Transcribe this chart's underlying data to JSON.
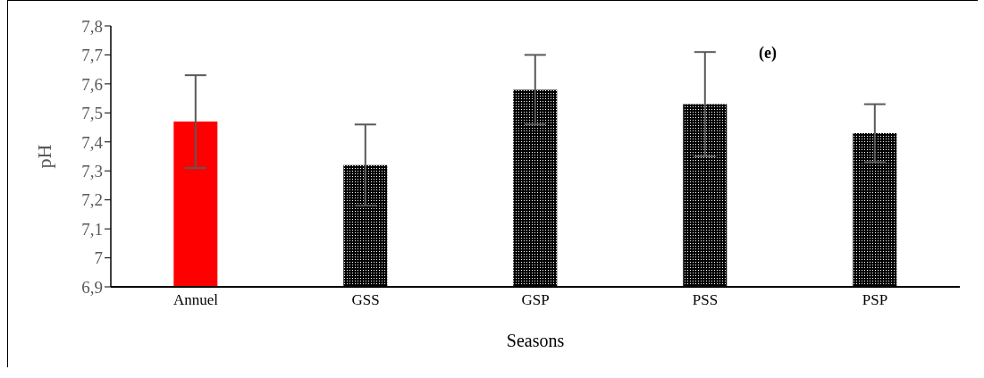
{
  "chart_data": {
    "type": "bar",
    "xlabel": "Seasons",
    "ylabel": "pH",
    "annotations": [
      "(e)"
    ],
    "categories": [
      "Annuel",
      "GSS",
      "GSP",
      "PSS",
      "PSP"
    ],
    "values": [
      7.47,
      7.32,
      7.58,
      7.53,
      7.43
    ],
    "errors": [
      0.16,
      0.14,
      0.12,
      0.18,
      0.1
    ],
    "colors": [
      "#ff0000",
      "#000000",
      "#000000",
      "#000000",
      "#000000"
    ],
    "ylim": [
      6.9,
      7.8
    ],
    "yticks": [
      {
        "value": 6.9,
        "label": "6,9"
      },
      {
        "value": 7,
        "label": "7"
      },
      {
        "value": 7.1,
        "label": "7,1"
      },
      {
        "value": 7.2,
        "label": "7,2"
      },
      {
        "value": 7.3,
        "label": "7,3"
      },
      {
        "value": 7.4,
        "label": "7,4"
      },
      {
        "value": 7.5,
        "label": "7,5"
      },
      {
        "value": 7.6,
        "label": "7,6"
      },
      {
        "value": 7.7,
        "label": "7,7"
      },
      {
        "value": 7.8,
        "label": "7,8"
      }
    ],
    "grid": false,
    "legend": false
  }
}
